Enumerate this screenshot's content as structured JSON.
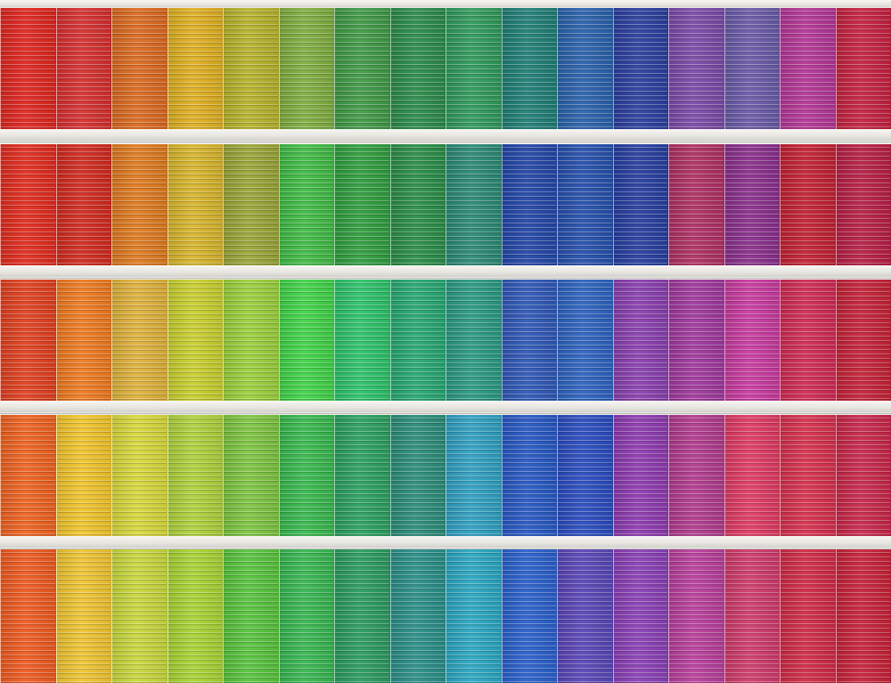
{
  "scene": {
    "subject": "building-facade-rainbow-blinds",
    "rows": [
      [
        "#e0261f",
        "#d72f2f",
        "#dc6a1f",
        "#e0b020",
        "#b7b32a",
        "#7fae3f",
        "#3f9a45",
        "#2b8c4a",
        "#2f9a5b",
        "#1f7f76",
        "#2a62ad",
        "#2b3f9f",
        "#7a4aa8",
        "#6a5aa8",
        "#b43696",
        "#c62240"
      ],
      [
        "#e22c1e",
        "#d22a1f",
        "#e07a1f",
        "#d8b52a",
        "#9aa536",
        "#3fbc44",
        "#2f9e3e",
        "#2a8e48",
        "#2b8a74",
        "#2347a8",
        "#2650ad",
        "#273ea0",
        "#b03064",
        "#8a2f8c",
        "#c32132",
        "#b81f46"
      ],
      [
        "#e2401f",
        "#f07a1f",
        "#e0b23a",
        "#c9d02c",
        "#9bd13a",
        "#3fd447",
        "#2cc36a",
        "#26a872",
        "#2a9a82",
        "#2f58b8",
        "#2d63c0",
        "#8a3fb0",
        "#a1389e",
        "#c93aa0",
        "#d12a55",
        "#c62238"
      ],
      [
        "#f0621f",
        "#f2c52a",
        "#d8d83a",
        "#aed23a",
        "#7dc53f",
        "#36b94d",
        "#2aa060",
        "#2b8d7a",
        "#2fa0c2",
        "#2758c4",
        "#2a4cc0",
        "#8e3ab0",
        "#b23a8e",
        "#e03a63",
        "#d7304d",
        "#c9274a"
      ],
      [
        "#f05a1f",
        "#f0c530",
        "#c8d83a",
        "#a8d432",
        "#57c43c",
        "#37b750",
        "#2a9b60",
        "#2a8f88",
        "#2aa7c2",
        "#2a60cc",
        "#5a46b8",
        "#8a3fb6",
        "#b93e9c",
        "#d03a6b",
        "#d12a46",
        "#c8223a"
      ]
    ]
  }
}
